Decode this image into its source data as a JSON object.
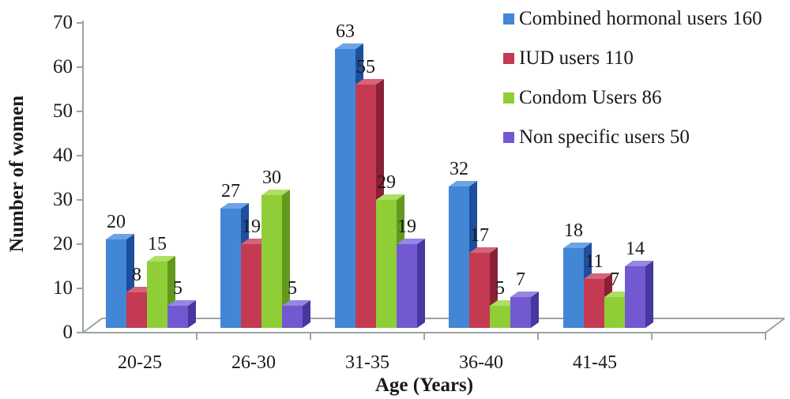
{
  "chart_data": {
    "type": "bar",
    "style": "3d-clustered-column",
    "xlabel": "Age (Years)",
    "ylabel": "Number of women",
    "categories": [
      "20-25",
      "26-30",
      "31-35",
      "36-40",
      "41-45"
    ],
    "series": [
      {
        "name": "Combined hormonal users 160",
        "values": [
          20,
          27,
          63,
          32,
          18
        ],
        "colors": {
          "front": "#4287d6",
          "top": "#6ca4e4",
          "side": "#1d4f9c"
        }
      },
      {
        "name": "IUD users 110",
        "values": [
          8,
          19,
          55,
          17,
          11
        ],
        "colors": {
          "front": "#c43a52",
          "top": "#d4647a",
          "side": "#8a1f38"
        }
      },
      {
        "name": "Condom Users 86",
        "values": [
          15,
          30,
          29,
          5,
          7
        ],
        "colors": {
          "front": "#8fce36",
          "top": "#aede63",
          "side": "#63991c"
        }
      },
      {
        "name": "Non specific users 50",
        "values": [
          5,
          5,
          19,
          7,
          14
        ],
        "colors": {
          "front": "#7259d2",
          "top": "#9486e2",
          "side": "#47379f"
        }
      }
    ],
    "ylim": [
      0,
      70
    ],
    "yticks": [
      0,
      10,
      20,
      30,
      40,
      50,
      60,
      70
    ],
    "grid": false,
    "legend_position": "right",
    "data_labels": true
  },
  "colors": {
    "axis": "#9aa3a4",
    "text": "#1a1a1a",
    "background": "#ffffff"
  }
}
